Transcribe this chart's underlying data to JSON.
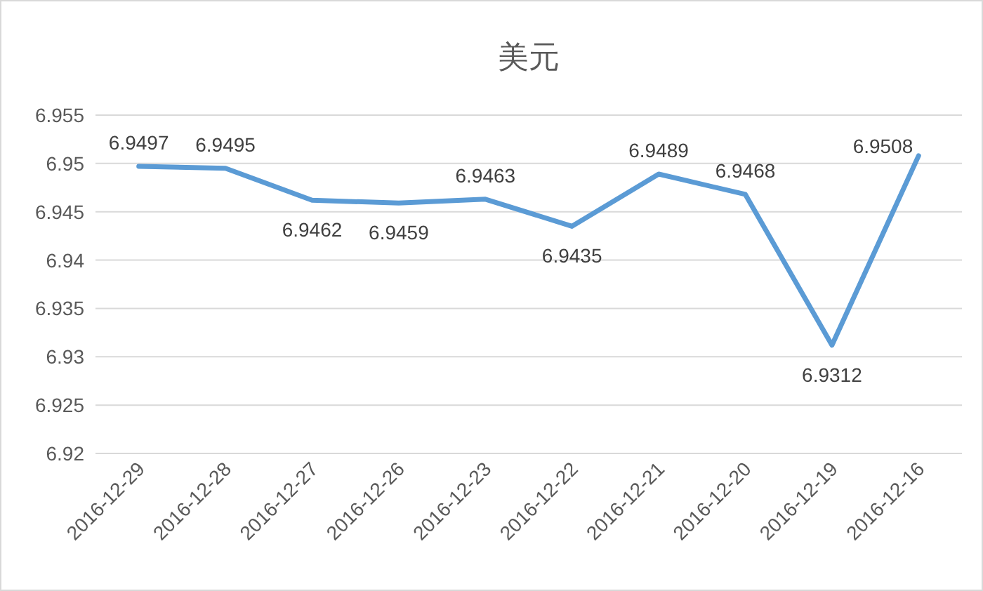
{
  "chart_data": {
    "type": "line",
    "title": "美元",
    "categories": [
      "2016-12-29",
      "2016-12-28",
      "2016-12-27",
      "2016-12-26",
      "2016-12-23",
      "2016-12-22",
      "2016-12-21",
      "2016-12-20",
      "2016-12-19",
      "2016-12-16"
    ],
    "series": [
      {
        "color": "#5b9bd5",
        "values": [
          6.9497,
          6.9495,
          6.9462,
          6.9459,
          6.9463,
          6.9435,
          6.9489,
          6.9468,
          6.9312,
          6.9508
        ]
      }
    ],
    "ylim": [
      6.92,
      6.955
    ],
    "yticks": [
      6.92,
      6.925,
      6.93,
      6.935,
      6.94,
      6.945,
      6.95,
      6.955
    ],
    "grid": "y",
    "data_labels": true,
    "marker": "none",
    "line_style": "solid"
  }
}
